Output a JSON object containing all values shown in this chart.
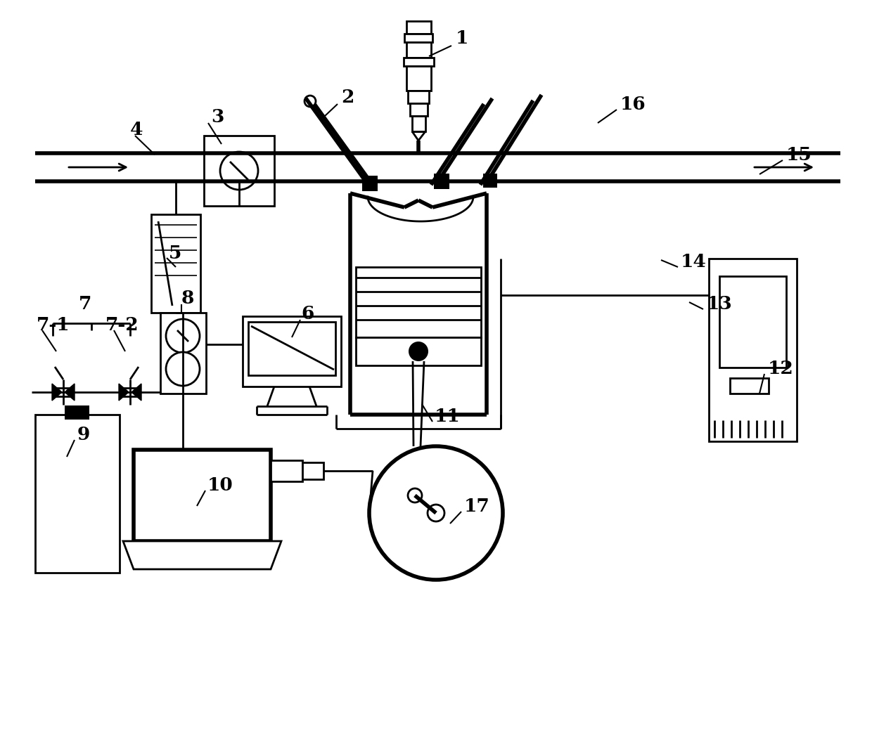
{
  "bg_color": "#ffffff",
  "line_color": "#000000",
  "lw": 2.0,
  "tlw": 4.0
}
